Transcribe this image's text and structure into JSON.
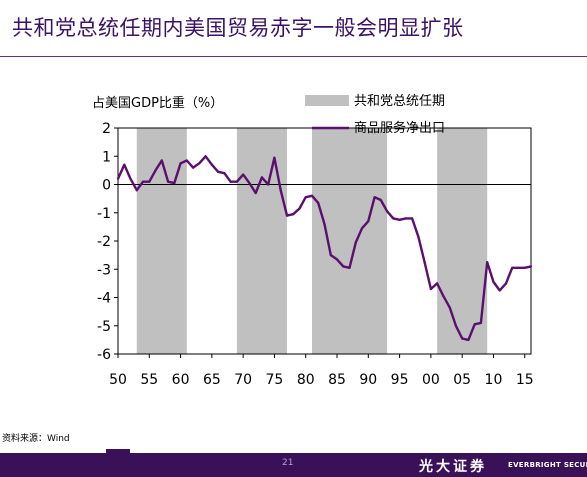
{
  "slide": {
    "title": "共和党总统任期内美国贸易赤字一般会明显扩张",
    "source_note": "资料来源：Wind",
    "page_number": "21",
    "brand_cn": "光大证券",
    "brand_en": "EVERBRIGHT SECURITI",
    "colors": {
      "accent": "#5b0f6e",
      "shade": "#c0c0c0",
      "footer": "#3a1159"
    }
  },
  "chart_data": {
    "type": "line",
    "ylabel": "占美国GDP比重（%）",
    "ylim": [
      -6,
      2
    ],
    "yticks": [
      2,
      1,
      0,
      -1,
      -2,
      -3,
      -4,
      -5,
      -6
    ],
    "xlim": [
      1950,
      2016
    ],
    "xticks": [
      1950,
      1955,
      1960,
      1965,
      1970,
      1975,
      1980,
      1985,
      1990,
      1995,
      2000,
      2005,
      2010,
      2015
    ],
    "xtick_labels": [
      "50",
      "55",
      "60",
      "65",
      "70",
      "75",
      "80",
      "85",
      "90",
      "95",
      "00",
      "05",
      "10",
      "15"
    ],
    "legend": {
      "placement": "top-right",
      "shade_label": "共和党总统任期",
      "line_label": "商品服务净出口"
    },
    "shaded_periods": [
      [
        1953,
        1961
      ],
      [
        1969,
        1977
      ],
      [
        1981,
        1993
      ],
      [
        2001,
        2009
      ]
    ],
    "series": [
      {
        "name": "商品服务净出口",
        "x": [
          1950,
          1951,
          1952,
          1953,
          1954,
          1955,
          1956,
          1957,
          1958,
          1959,
          1960,
          1961,
          1962,
          1963,
          1964,
          1965,
          1966,
          1967,
          1968,
          1969,
          1970,
          1971,
          1972,
          1973,
          1974,
          1975,
          1976,
          1977,
          1978,
          1979,
          1980,
          1981,
          1982,
          1983,
          1984,
          1985,
          1986,
          1987,
          1988,
          1989,
          1990,
          1991,
          1992,
          1993,
          1994,
          1995,
          1996,
          1997,
          1998,
          1999,
          2000,
          2001,
          2002,
          2003,
          2004,
          2005,
          2006,
          2007,
          2008,
          2009,
          2010,
          2011,
          2012,
          2013,
          2014,
          2015,
          2016
        ],
        "values": [
          0.2,
          0.7,
          0.2,
          -0.2,
          0.1,
          0.1,
          0.5,
          0.85,
          0.1,
          0.05,
          0.75,
          0.85,
          0.6,
          0.75,
          1.0,
          0.7,
          0.45,
          0.4,
          0.1,
          0.1,
          0.35,
          0.05,
          -0.3,
          0.25,
          0.0,
          0.95,
          -0.2,
          -1.1,
          -1.05,
          -0.85,
          -0.45,
          -0.4,
          -0.65,
          -1.4,
          -2.5,
          -2.65,
          -2.9,
          -2.95,
          -2.05,
          -1.55,
          -1.3,
          -0.45,
          -0.55,
          -0.95,
          -1.2,
          -1.25,
          -1.2,
          -1.2,
          -1.85,
          -2.75,
          -3.7,
          -3.5,
          -3.95,
          -4.35,
          -5.0,
          -5.45,
          -5.5,
          -4.95,
          -4.9,
          -2.75,
          -3.45,
          -3.75,
          -3.5,
          -2.95,
          -2.95,
          -2.95,
          -2.9
        ]
      }
    ]
  }
}
